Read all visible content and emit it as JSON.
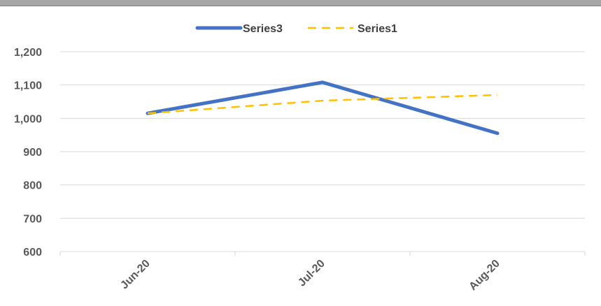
{
  "chart_data": {
    "type": "line",
    "categories": [
      "Jun-20",
      "Jul-20",
      "Aug-20"
    ],
    "series": [
      {
        "name": "Series3",
        "values": [
          1015,
          1108,
          955
        ],
        "color": "#4472c4",
        "style": "solid"
      },
      {
        "name": "Series1",
        "values": [
          1015,
          1053,
          1070
        ],
        "color": "#ffc000",
        "style": "dashed"
      }
    ],
    "ylim": [
      600,
      1200
    ],
    "yticks": [
      600,
      700,
      800,
      900,
      1000,
      1100,
      1200
    ],
    "ytick_labels": [
      "600",
      "700",
      "800",
      "900",
      "1,000",
      "1,100",
      "1,200"
    ],
    "title": "",
    "xlabel": "",
    "ylabel": "",
    "grid": true,
    "legend_position": "top"
  }
}
